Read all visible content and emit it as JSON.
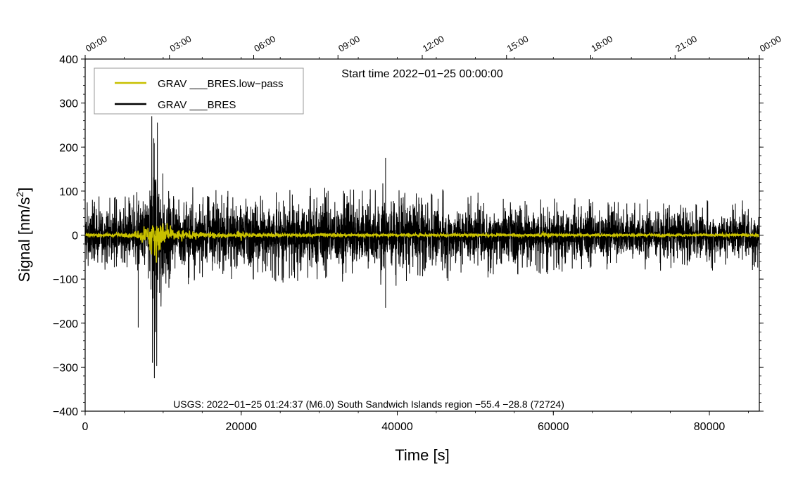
{
  "chart_data": {
    "type": "line",
    "title": "",
    "annotations": {
      "start_time": "Start time 2022−01−25 00:00:00",
      "event": "USGS: 2022−01−25 01:24:37 (M6.0) South Sandwich Islands region −55.4 −28.8 (72724)"
    },
    "xlabel": "Time [s]",
    "ylabel_base": "Signal [nm/s",
    "ylabel_sup": "2",
    "ylabel_end": "]",
    "xlim": [
      0,
      86400
    ],
    "ylim": [
      -400,
      400
    ],
    "x_ticks": [
      0,
      20000,
      40000,
      60000,
      80000
    ],
    "x_tick_labels": [
      "0",
      "20000",
      "40000",
      "60000",
      "80000"
    ],
    "y_ticks": [
      -400,
      -300,
      -200,
      -100,
      0,
      100,
      200,
      300,
      400
    ],
    "y_tick_labels": [
      "−400",
      "−300",
      "−200",
      "−100",
      "0",
      "100",
      "200",
      "300",
      "400"
    ],
    "top_axis": {
      "ticks": [
        0,
        10800,
        21600,
        32400,
        43200,
        54000,
        64800,
        75600,
        86400
      ],
      "labels": [
        "00:00",
        "03:00",
        "06:00",
        "09:00",
        "12:00",
        "15:00",
        "18:00",
        "21:00",
        "00:00"
      ]
    },
    "legend_position": "top-left",
    "grid": false,
    "series": [
      {
        "name": "GRAV ___BRES.low−pass",
        "color": "#c8c000",
        "envelope": {
          "x": [
            0,
            6000,
            7000,
            8000,
            8500,
            9000,
            9500,
            10000,
            11000,
            13000,
            16000,
            19000,
            19800,
            20500,
            30000,
            50000,
            58000,
            59000,
            60000,
            70000,
            86400
          ],
          "amplitude": [
            4,
            4,
            12,
            22,
            35,
            75,
            40,
            26,
            16,
            9,
            6,
            4,
            12,
            4,
            4,
            3,
            3,
            8,
            3,
            3,
            3
          ]
        }
      },
      {
        "name": "GRAV ___BRES",
        "color": "#000000",
        "envelope": {
          "x": [
            0,
            6000,
            7000,
            8000,
            8800,
            9300,
            10000,
            11000,
            13000,
            20000,
            30000,
            38500,
            50000,
            60000,
            70000,
            86400
          ],
          "amplitude": [
            55,
            55,
            75,
            95,
            210,
            180,
            120,
            85,
            70,
            65,
            70,
            75,
            62,
            55,
            52,
            50
          ]
        },
        "peaks": [
          {
            "x": 6800,
            "y": -210
          },
          {
            "x": 8800,
            "y": 220
          },
          {
            "x": 9000,
            "y": -220
          },
          {
            "x": 38500,
            "y": 175
          },
          {
            "x": 38500,
            "y": -165
          }
        ]
      }
    ]
  }
}
